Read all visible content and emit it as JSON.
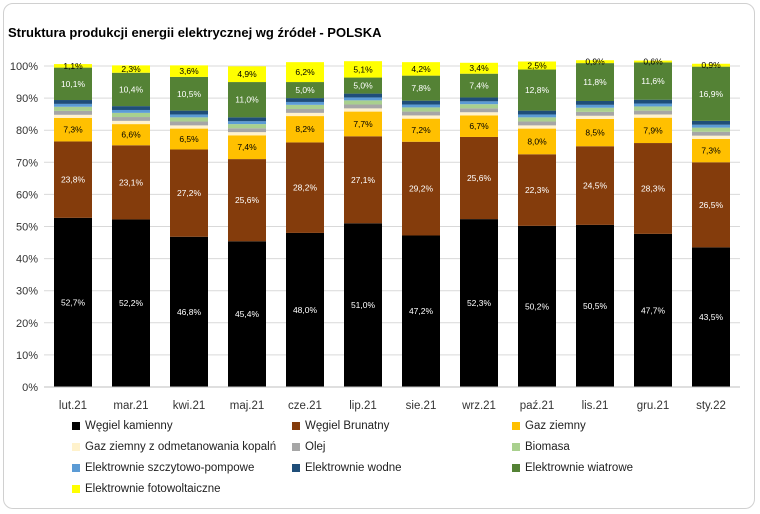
{
  "chart_data": {
    "type": "bar",
    "stacked": true,
    "title": "Struktura produkcji energii elektrycznej wg źródeł - POLSKA",
    "categories": [
      "lut.21",
      "mar.21",
      "kwi.21",
      "maj.21",
      "cze.21",
      "lip.21",
      "sie.21",
      "wrz.21",
      "paź.21",
      "lis.21",
      "gru.21",
      "sty.22"
    ],
    "ylim": [
      0,
      100
    ],
    "yticks": [
      "0%",
      "10%",
      "20%",
      "30%",
      "40%",
      "50%",
      "60%",
      "70%",
      "80%",
      "90%",
      "100%"
    ],
    "grid": true,
    "legend_position": "bottom",
    "series": [
      {
        "name": "Węgiel kamienny",
        "color": "#000000",
        "label_color": "#ffffff",
        "values": [
          52.7,
          52.2,
          46.8,
          45.4,
          48.0,
          51.0,
          47.2,
          52.3,
          50.2,
          50.5,
          47.7,
          43.5
        ],
        "labels": [
          "52,7%",
          "52,2%",
          "46,8%",
          "45,4%",
          "48,0%",
          "51,0%",
          "47,2%",
          "52,3%",
          "50,2%",
          "50,5%",
          "47,7%",
          "43,5%"
        ]
      },
      {
        "name": "Węgiel Brunatny",
        "color": "#843c0c",
        "label_color": "#ffffff",
        "values": [
          23.8,
          23.1,
          27.2,
          25.6,
          28.2,
          27.1,
          29.2,
          25.6,
          22.3,
          24.5,
          28.3,
          26.5
        ],
        "labels": [
          "23,8%",
          "23,1%",
          "27,2%",
          "25,6%",
          "28,2%",
          "27,1%",
          "29,2%",
          "25,6%",
          "22,3%",
          "24,5%",
          "28,3%",
          "26,5%"
        ]
      },
      {
        "name": "Gaz ziemny",
        "color": "#ffc000",
        "label_color": "#000000",
        "values": [
          7.3,
          6.6,
          6.5,
          7.4,
          8.2,
          7.7,
          7.2,
          6.7,
          8.0,
          8.5,
          7.9,
          7.3
        ],
        "labels": [
          "7,3%",
          "6,6%",
          "6,5%",
          "7,4%",
          "8,2%",
          "7,7%",
          "7,2%",
          "6,7%",
          "8,0%",
          "8,5%",
          "7,9%",
          "7,3%"
        ]
      },
      {
        "name": "Gaz ziemny z odmetanowania kopalń",
        "color": "#fff2cc",
        "label_color": "#000000",
        "values": [
          1.0,
          1.0,
          1.0,
          1.0,
          1.0,
          1.0,
          1.0,
          1.0,
          1.0,
          1.0,
          1.0,
          1.0
        ],
        "labels": []
      },
      {
        "name": "Olej",
        "color": "#a6a6a6",
        "label_color": "#000000",
        "values": [
          1.2,
          1.2,
          1.2,
          1.2,
          1.2,
          1.2,
          1.2,
          1.2,
          1.2,
          1.2,
          1.2,
          1.2
        ],
        "labels": []
      },
      {
        "name": "Biomasa",
        "color": "#a9d08e",
        "label_color": "#000000",
        "values": [
          1.3,
          1.3,
          1.3,
          1.3,
          1.3,
          1.3,
          1.3,
          1.3,
          1.3,
          1.3,
          1.3,
          1.3
        ],
        "labels": []
      },
      {
        "name": "Elektrownie szczytowo-pompowe",
        "color": "#5b9bd5",
        "label_color": "#000000",
        "values": [
          0.9,
          0.9,
          0.9,
          0.9,
          0.9,
          0.9,
          0.9,
          0.9,
          0.9,
          0.9,
          0.9,
          0.9
        ],
        "labels": []
      },
      {
        "name": "Elektrownie wodne",
        "color": "#1f4e79",
        "label_color": "#ffffff",
        "values": [
          1.2,
          1.2,
          1.2,
          1.2,
          1.2,
          1.2,
          1.2,
          1.2,
          1.2,
          1.2,
          1.2,
          1.2
        ],
        "labels": []
      },
      {
        "name": "Elektrownie wiatrowe",
        "color": "#548235",
        "label_color": "#ffffff",
        "values": [
          10.1,
          10.4,
          10.5,
          11.0,
          5.0,
          5.0,
          7.8,
          7.4,
          12.8,
          11.8,
          11.6,
          16.9
        ],
        "labels": [
          "10,1%",
          "10,4%",
          "10,5%",
          "11,0%",
          "5,0%",
          "5,0%",
          "7,8%",
          "7,4%",
          "12,8%",
          "11,8%",
          "11,6%",
          "16,9%"
        ]
      },
      {
        "name": "Elektrownie fotowoltaiczne",
        "color": "#ffff00",
        "label_color": "#000000",
        "values": [
          1.1,
          2.3,
          3.6,
          4.9,
          6.2,
          5.1,
          4.2,
          3.4,
          2.5,
          0.9,
          0.6,
          0.9
        ],
        "labels": [
          "1,1%",
          "2,3%",
          "3,6%",
          "4,9%",
          "6,2%",
          "5,1%",
          "4,2%",
          "3,4%",
          "2,5%",
          "0,9%",
          "0,6%",
          "0,9%"
        ]
      }
    ]
  }
}
